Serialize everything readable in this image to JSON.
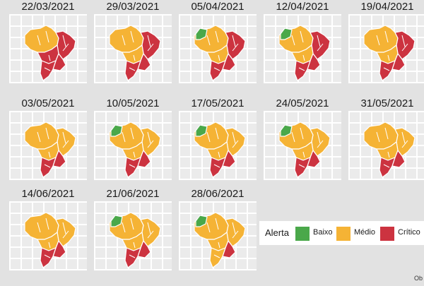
{
  "colors": {
    "baixo": "#4aa84a",
    "medio": "#f5b335",
    "critico": "#cc3340"
  },
  "panels": [
    {
      "date": "22/03/2021",
      "n": 0,
      "medio": 1
    },
    {
      "date": "29/03/2021",
      "n": 0,
      "medio": 2
    },
    {
      "date": "05/04/2021",
      "n": 1,
      "medio": 2
    },
    {
      "date": "12/04/2021",
      "n": 1,
      "medio": 2
    },
    {
      "date": "19/04/2021",
      "n": 0,
      "medio": 2
    },
    {
      "date": "03/05/2021",
      "n": 0,
      "medio": 3
    },
    {
      "date": "10/05/2021",
      "n": 1,
      "medio": 3
    },
    {
      "date": "17/05/2021",
      "n": 1,
      "medio": 3
    },
    {
      "date": "24/05/2021",
      "n": 1,
      "medio": 3
    },
    {
      "date": "31/05/2021",
      "n": 0,
      "medio": 3
    },
    {
      "date": "14/06/2021",
      "n": 0,
      "medio": 3
    },
    {
      "date": "21/06/2021",
      "n": 1,
      "medio": 3
    },
    {
      "date": "28/06/2021",
      "n": 1,
      "medio": 4
    }
  ],
  "legend": {
    "title": "Alerta",
    "items": [
      {
        "label": "Baixo",
        "color": "#4aa84a"
      },
      {
        "label": "Médio",
        "color": "#f5b335"
      },
      {
        "label": "Crítico",
        "color": "#cc3340"
      }
    ]
  },
  "caption": "Ob"
}
